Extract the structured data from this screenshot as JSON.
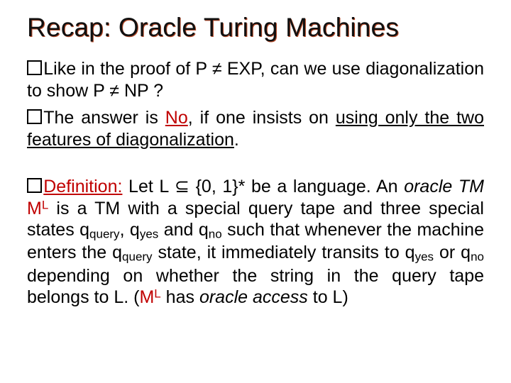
{
  "title": "Recap: Oracle Turing Machines",
  "colors": {
    "background": "#ffffff",
    "text": "#000000",
    "title_shadow": "#b84a28",
    "accent_red": "#c00000"
  },
  "typography": {
    "title_fontsize_pt": 28,
    "body_fontsize_pt": 19,
    "font_family": "Arial"
  },
  "bullets": [
    {
      "runs": [
        {
          "t": "Like in the proof of P ≠ EXP, can we use diagonalization to show P ≠ NP ?"
        }
      ]
    },
    {
      "runs": [
        {
          "t": "The answer is "
        },
        {
          "t": "No",
          "red": true,
          "u": true
        },
        {
          "t": ", if one insists on "
        },
        {
          "t": "using only the two features of diagonalization",
          "u": true
        },
        {
          "t": "."
        }
      ]
    }
  ],
  "definition": {
    "label": "Definition:",
    "runs": [
      {
        "t": " Let L ⊆ {0, 1}* be a language. An "
      },
      {
        "t": "oracle TM",
        "ital": true
      },
      {
        "t": " "
      },
      {
        "t": "M",
        "red": true
      },
      {
        "t": "L",
        "red": true,
        "sup": true
      },
      {
        "t": " is a TM with a special query tape and three special states q"
      },
      {
        "t": "query",
        "sub": true
      },
      {
        "t": ", q"
      },
      {
        "t": "yes",
        "sub": true
      },
      {
        "t": " and q"
      },
      {
        "t": "no",
        "sub": true
      },
      {
        "t": " such that whenever the machine enters the q"
      },
      {
        "t": "query",
        "sub": true
      },
      {
        "t": " state, it immediately transits to q"
      },
      {
        "t": "yes",
        "sub": true
      },
      {
        "t": " or q"
      },
      {
        "t": "no",
        "sub": true
      },
      {
        "t": " depending on whether the string in the query tape belongs to L. ("
      },
      {
        "t": "M",
        "red": true
      },
      {
        "t": "L",
        "red": true,
        "sup": true
      },
      {
        "t": " has "
      },
      {
        "t": "oracle access",
        "ital": true
      },
      {
        "t": " to L)"
      }
    ]
  }
}
